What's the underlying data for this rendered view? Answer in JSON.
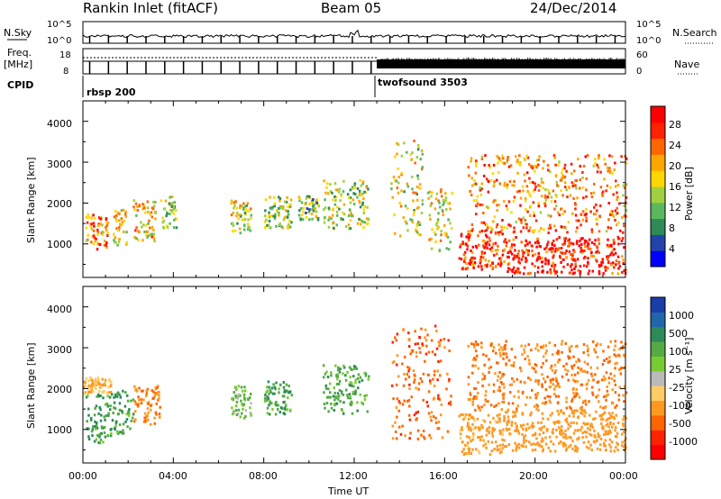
{
  "header": {
    "title": "Rankin Inlet (fitACF)",
    "beam": "Beam 05",
    "date": "24/Dec/2014"
  },
  "strip_labels": {
    "nsky": "N.Sky",
    "nsky_ticks": [
      "10^5",
      "10^0"
    ],
    "nsearch": "N.Search",
    "nsearch_ticks": [
      "10^5",
      "10^0"
    ],
    "freq": "Freq.",
    "freq_unit": "[MHz]",
    "freq_ticks": [
      "18",
      "8"
    ],
    "nave": "Nave",
    "nave_ticks": [
      "60",
      "0"
    ],
    "cpid": "CPID"
  },
  "cpid_segments": [
    {
      "name": "rbsp 200",
      "start_hour": 0
    },
    {
      "name": "twofsound 3503",
      "start_hour": 13
    }
  ],
  "x_axis": {
    "label": "Time UT",
    "ticks": [
      "00:00",
      "04:00",
      "08:00",
      "12:00",
      "16:00",
      "20:00",
      "00:00"
    ],
    "range_hours": [
      0,
      24
    ]
  },
  "power_panel": {
    "ylabel": "Slant Range [km]",
    "yticks": [
      "1000",
      "2000",
      "3000",
      "4000"
    ],
    "colorbar_label": "Power [dB]",
    "colorbar_ticks": [
      "4",
      "8",
      "12",
      "16",
      "20",
      "24",
      "28"
    ],
    "colors": [
      "#0000ff",
      "#2244aa",
      "#2e8b57",
      "#5cb85c",
      "#a0d040",
      "#ffd700",
      "#ffa500",
      "#ff6600",
      "#ff2200",
      "#ff0000"
    ]
  },
  "velocity_panel": {
    "ylabel": "Slant Range [km]",
    "yticks": [
      "1000",
      "2000",
      "3000",
      "4000"
    ],
    "colorbar_label": "Velocity [m s⁻¹]",
    "colorbar_ticks": [
      "1000",
      "500",
      "100",
      "25",
      "-25",
      "-100",
      "-500",
      "-1000"
    ],
    "colors": [
      "#1a3da8",
      "#2266aa",
      "#2e8b57",
      "#55aa44",
      "#77cc33",
      "#bbbbbb",
      "#ffcc66",
      "#ff9922",
      "#ff6600",
      "#ff2200",
      "#ff0000"
    ]
  },
  "chart_data": {
    "type": "heatmap",
    "title": "Rankin Inlet (fitACF)",
    "xlabel": "Time UT",
    "ylabel": "Slant Range [km]",
    "xlim": [
      0,
      24
    ],
    "ylim": [
      180,
      4500
    ],
    "power_regions": [
      {
        "t0": 0.1,
        "t1": 1.1,
        "r0": 900,
        "r1": 1750,
        "level": 0.7
      },
      {
        "t0": 1.3,
        "t1": 1.9,
        "r0": 1000,
        "r1": 1900,
        "level": 0.55
      },
      {
        "t0": 2.2,
        "t1": 3.2,
        "r0": 1100,
        "r1": 2100,
        "level": 0.6
      },
      {
        "t0": 3.4,
        "t1": 4.1,
        "r0": 1400,
        "r1": 2200,
        "level": 0.45
      },
      {
        "t0": 6.5,
        "t1": 7.4,
        "r0": 1300,
        "r1": 2100,
        "level": 0.5
      },
      {
        "t0": 8.0,
        "t1": 9.2,
        "r0": 1400,
        "r1": 2200,
        "level": 0.45
      },
      {
        "t0": 9.5,
        "t1": 10.4,
        "r0": 1600,
        "r1": 2200,
        "level": 0.4
      },
      {
        "t0": 10.6,
        "t1": 12.6,
        "r0": 1400,
        "r1": 2600,
        "level": 0.45
      },
      {
        "t0": 13.6,
        "t1": 15.0,
        "r0": 1200,
        "r1": 3600,
        "level": 0.5
      },
      {
        "t0": 15.2,
        "t1": 16.3,
        "r0": 800,
        "r1": 2400,
        "level": 0.55
      },
      {
        "t0": 16.6,
        "t1": 18.6,
        "r0": 400,
        "r1": 1400,
        "level": 0.85
      },
      {
        "t0": 18.6,
        "t1": 24.0,
        "r0": 300,
        "r1": 1200,
        "level": 0.9
      },
      {
        "t0": 17.0,
        "t1": 24.0,
        "r0": 1300,
        "r1": 3200,
        "level": 0.7
      }
    ],
    "velocity_regions": [
      {
        "t0": 0.1,
        "t1": 1.2,
        "r0": 700,
        "r1": 1900,
        "v": 100
      },
      {
        "t0": 0.0,
        "t1": 1.2,
        "r0": 1900,
        "r1": 2300,
        "v": -100
      },
      {
        "t0": 1.2,
        "t1": 2.2,
        "r0": 900,
        "r1": 2000,
        "v": 100
      },
      {
        "t0": 2.2,
        "t1": 3.4,
        "r0": 1100,
        "r1": 2100,
        "v": -300
      },
      {
        "t0": 6.5,
        "t1": 7.4,
        "r0": 1300,
        "r1": 2100,
        "v": 50
      },
      {
        "t0": 8.0,
        "t1": 9.2,
        "r0": 1400,
        "r1": 2200,
        "v": 100
      },
      {
        "t0": 10.6,
        "t1": 12.6,
        "r0": 1400,
        "r1": 2600,
        "v": 80
      },
      {
        "t0": 13.6,
        "t1": 16.3,
        "r0": 800,
        "r1": 3600,
        "v": -400
      },
      {
        "t0": 16.6,
        "t1": 18.6,
        "r0": 400,
        "r1": 1400,
        "v": -150
      },
      {
        "t0": 18.6,
        "t1": 24.0,
        "r0": 500,
        "r1": 1500,
        "v": -200
      },
      {
        "t0": 17.0,
        "t1": 24.0,
        "r0": 1500,
        "r1": 3200,
        "v": -300
      }
    ]
  }
}
